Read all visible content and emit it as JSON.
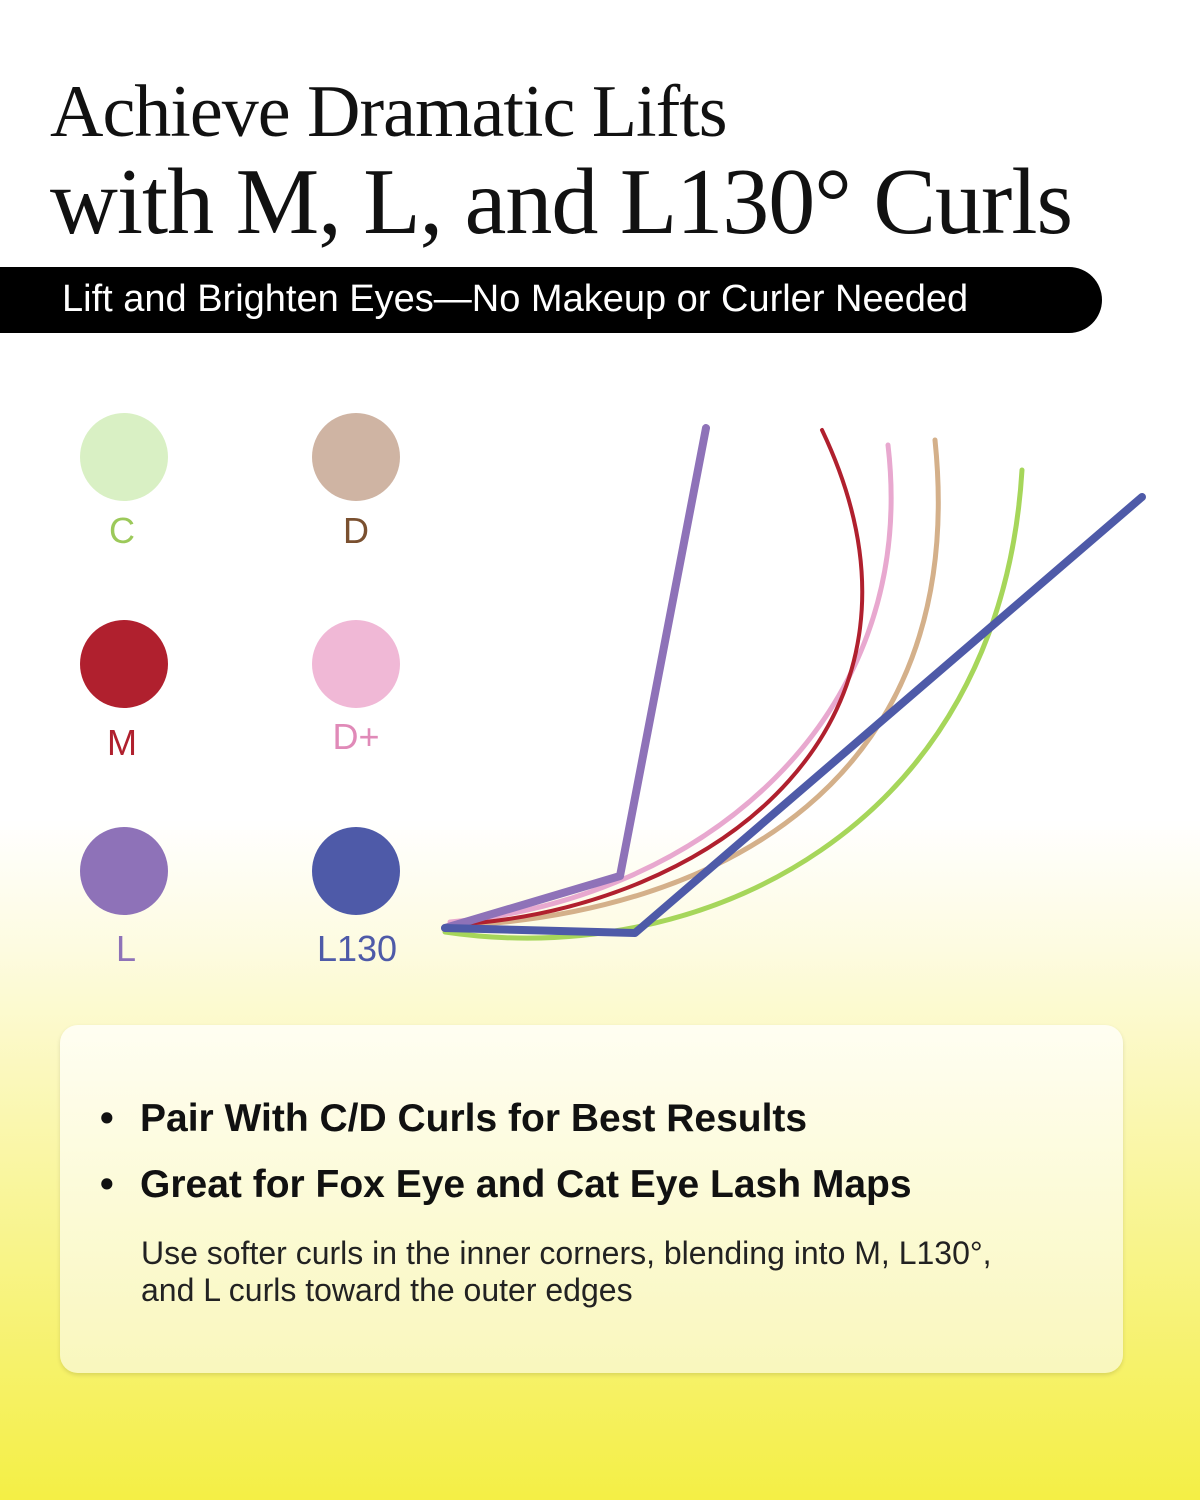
{
  "header": {
    "title_line1": "Achieve Dramatic Lifts",
    "title_line2": "with M, L, and L130° Curls",
    "banner": "Lift and Brighten Eyes—No Makeup or Curler Needed"
  },
  "curls": [
    {
      "label": "C",
      "swatch": "#d9f0c4",
      "text_color": "#9cc95a",
      "line": "#a6d65a"
    },
    {
      "label": "D",
      "swatch": "#cfb4a3",
      "text_color": "#7a5030",
      "line": "#d4b08a"
    },
    {
      "label": "M",
      "swatch": "#b0202e",
      "text_color": "#b0202e",
      "line": "#b0202e"
    },
    {
      "label": "D+",
      "swatch": "#f0b8d6",
      "text_color": "#e08ab8",
      "line": "#e8a8cf"
    },
    {
      "label": "L",
      "swatch": "#8e72b8",
      "text_color": "#8e72b8",
      "line": "#8e72b8"
    },
    {
      "label": "L130",
      "swatch": "#4e5aa8",
      "text_color": "#4e5aa8",
      "line": "#4e5aa8"
    }
  ],
  "card": {
    "bullets": [
      "Pair With C/D Curls for Best Results",
      "Great for Fox Eye and Cat Eye Lash Maps"
    ],
    "bullet_symbol": "•",
    "note": "Use softer curls in the inner corners, blending into M, L130°, and L curls toward the outer edges"
  }
}
